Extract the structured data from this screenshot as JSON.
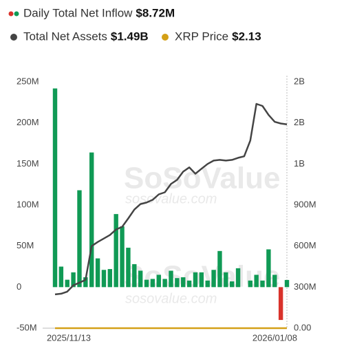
{
  "chart_data": {
    "type": "bar_line",
    "watermark": "SoSoValue",
    "watermark_url": "sosovalue.com",
    "categories": [
      "2025/11/13",
      null,
      null,
      null,
      null,
      null,
      null,
      null,
      null,
      null,
      null,
      null,
      null,
      null,
      null,
      null,
      null,
      null,
      null,
      null,
      null,
      null,
      null,
      null,
      null,
      null,
      null,
      null,
      null,
      null,
      null,
      null,
      null,
      null,
      null,
      null,
      null,
      null,
      "2026/01/08"
    ],
    "series": [
      {
        "name": "Daily Total Net Inflow",
        "legend_value": "$8.72M",
        "type": "bar",
        "color": "#109a55",
        "negative_color": "#d9322b",
        "axis": "y",
        "values": [
          242000000,
          25000000,
          9000000,
          18000000,
          118000000,
          12000000,
          164000000,
          35000000,
          21000000,
          22000000,
          89000000,
          74000000,
          48000000,
          28000000,
          20000000,
          9000000,
          10000000,
          15000000,
          10000000,
          20000000,
          11000000,
          12000000,
          8000000,
          18000000,
          18000000,
          8000000,
          21000000,
          44000000,
          18000000,
          7000000,
          23000000,
          0,
          8000000,
          15000000,
          8000000,
          46000000,
          15000000,
          -40000000,
          8720000
        ]
      },
      {
        "name": "Total Net Assets",
        "legend_value": "$1.49B",
        "type": "line",
        "color": "#444444",
        "axis": "y2",
        "values": [
          247000000,
          252000000,
          267000000,
          313000000,
          333000000,
          353000000,
          600000000,
          630000000,
          655000000,
          681000000,
          721000000,
          741000000,
          802000000,
          867000000,
          907000000,
          918000000,
          938000000,
          978000000,
          993000000,
          1054000000,
          1084000000,
          1144000000,
          1175000000,
          1129000000,
          1165000000,
          1200000000,
          1225000000,
          1230000000,
          1225000000,
          1230000000,
          1245000000,
          1256000000,
          1371000000,
          1639000000,
          1624000000,
          1558000000,
          1508000000,
          1496000000,
          1490000000
        ]
      },
      {
        "name": "XRP Price",
        "legend_value": "$2.13",
        "type": "line",
        "color": "#d4a017",
        "axis": "y2",
        "values": [
          2.3,
          2.2,
          2.2,
          2.1,
          2.1,
          2.2,
          2.2,
          2.1,
          2.2,
          2.2,
          2.1,
          2.1,
          2.0,
          2.0,
          2.0,
          2.0,
          2.0,
          2.0,
          1.9,
          1.9,
          1.9,
          1.9,
          1.9,
          1.9,
          1.9,
          1.9,
          1.9,
          1.9,
          1.9,
          1.9,
          1.9,
          1.9,
          2.0,
          2.2,
          2.4,
          2.3,
          2.2,
          2.1,
          2.13
        ]
      }
    ],
    "ylim": [
      -50000000,
      250000000
    ],
    "yticks": [
      {
        "value": -50000000,
        "label": "-50M"
      },
      {
        "value": 0,
        "label": "0"
      },
      {
        "value": 50000000,
        "label": "50M"
      },
      {
        "value": 100000000,
        "label": "100M"
      },
      {
        "value": 150000000,
        "label": "150M"
      },
      {
        "value": 200000000,
        "label": "200M"
      },
      {
        "value": 250000000,
        "label": "250M"
      }
    ],
    "y2lim": [
      0,
      1800000000
    ],
    "y2ticks": [
      {
        "value": 0,
        "label": "0.00"
      },
      {
        "value": 300000000,
        "label": "300M"
      },
      {
        "value": 600000000,
        "label": "600M"
      },
      {
        "value": 900000000,
        "label": "900M"
      },
      {
        "value": 1200000000,
        "label": "1B"
      },
      {
        "value": 1500000000,
        "label": "2B"
      },
      {
        "value": 1800000000,
        "label": "2B"
      }
    ],
    "grid": false
  }
}
